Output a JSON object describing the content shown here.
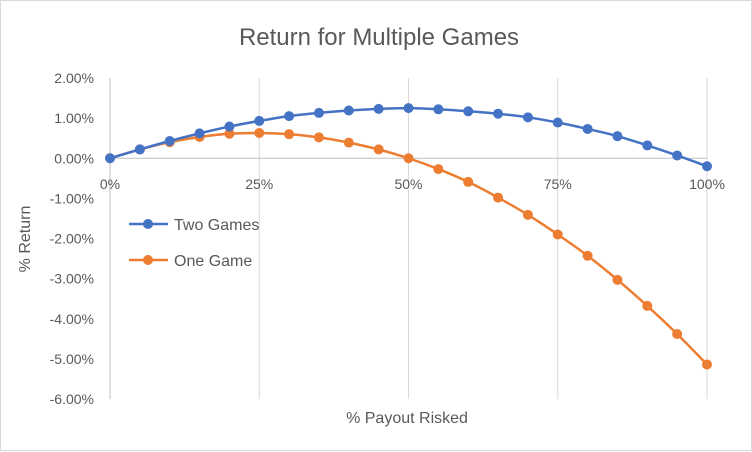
{
  "chart_data": {
    "type": "line",
    "title": "Return for Multiple Games",
    "xlabel": "% Payout Risked",
    "ylabel": "% Return",
    "x_ticks": [
      "0%",
      "25%",
      "50%",
      "75%",
      "100%"
    ],
    "y_ticks": [
      "2.00%",
      "1.00%",
      "0.00%",
      "-1.00%",
      "-2.00%",
      "-3.00%",
      "-4.00%",
      "-5.00%",
      "-6.00%"
    ],
    "xlim": [
      0,
      100
    ],
    "ylim": [
      -6,
      2
    ],
    "grid": "vertical",
    "legend_position": "left",
    "x": [
      0,
      5,
      10,
      15,
      20,
      25,
      30,
      35,
      40,
      45,
      50,
      55,
      60,
      65,
      70,
      75,
      80,
      85,
      90,
      95,
      100
    ],
    "series": [
      {
        "name": "Two Games",
        "color": "#4472c4",
        "values": [
          0.0,
          0.22,
          0.43,
          0.62,
          0.79,
          0.93,
          1.05,
          1.13,
          1.19,
          1.23,
          1.25,
          1.22,
          1.17,
          1.11,
          1.02,
          0.89,
          0.73,
          0.55,
          0.32,
          0.07,
          -0.2
        ]
      },
      {
        "name": "One Game",
        "color": "#ed7d31",
        "values": [
          0.0,
          0.22,
          0.4,
          0.53,
          0.61,
          0.63,
          0.6,
          0.52,
          0.39,
          0.22,
          0.0,
          -0.27,
          -0.59,
          -0.98,
          -1.41,
          -1.9,
          -2.43,
          -3.03,
          -3.68,
          -4.38,
          -5.14
        ]
      }
    ]
  }
}
